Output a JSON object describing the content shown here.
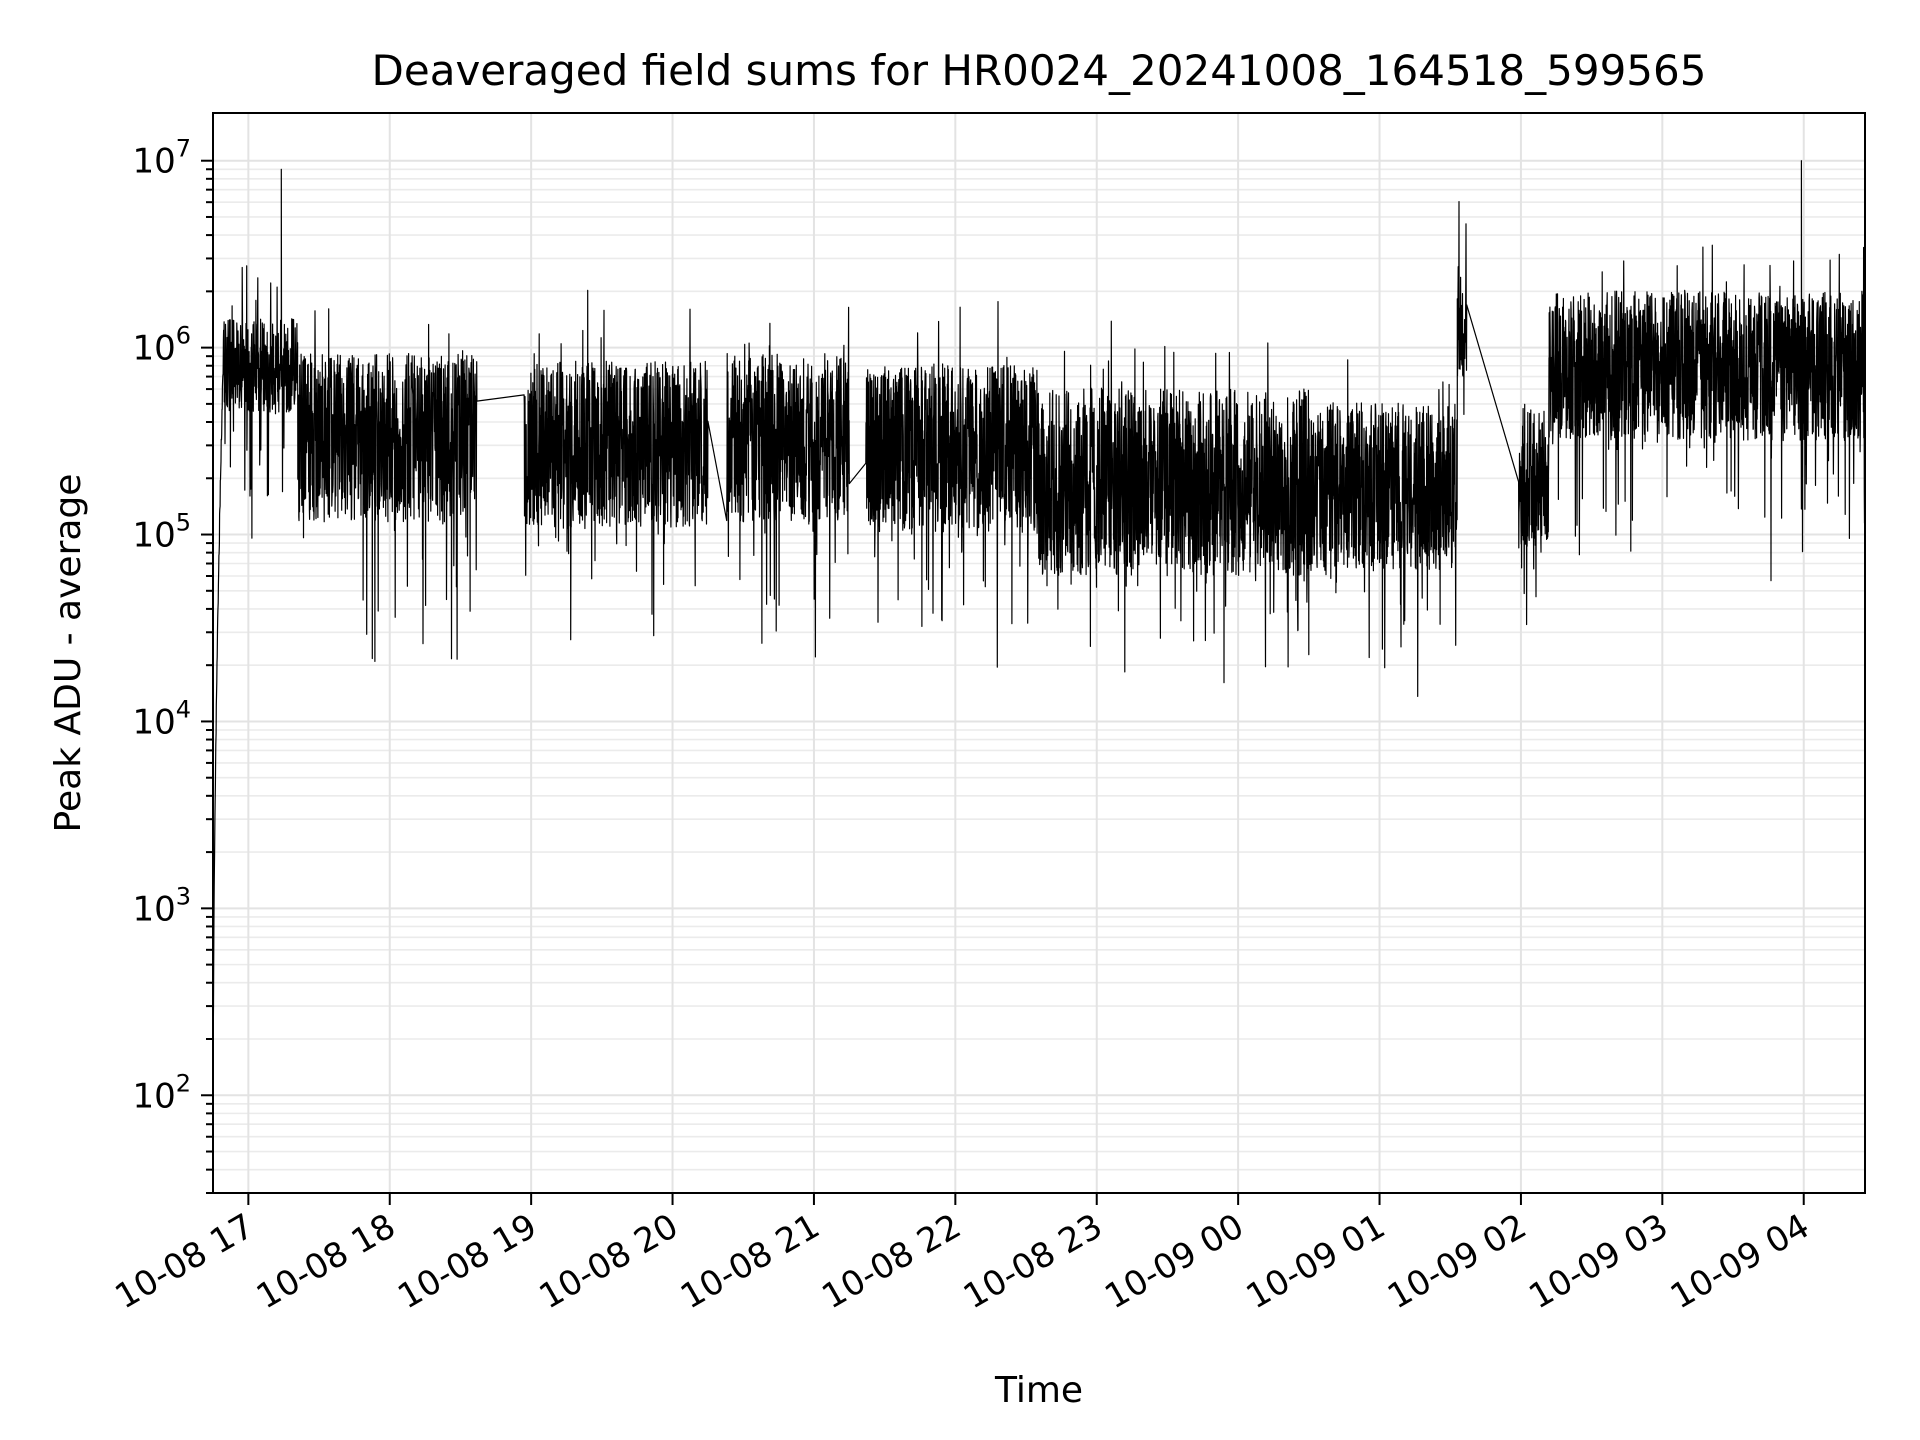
{
  "chart_data": {
    "type": "line",
    "title": "Deaveraged field sums for HR0024_20241008_164518_599565",
    "xlabel": "Time",
    "ylabel": "Peak ADU - average",
    "yscale": "log",
    "ylim": [
      30,
      18000000
    ],
    "xlim": [
      "2024-10-08 16:45",
      "2024-10-09 04:26"
    ],
    "grid": true,
    "x_ticks": [
      {
        "value": "2024-10-08 17:00",
        "label": "10-08 17"
      },
      {
        "value": "2024-10-08 18:00",
        "label": "10-08 18"
      },
      {
        "value": "2024-10-08 19:00",
        "label": "10-08 19"
      },
      {
        "value": "2024-10-08 20:00",
        "label": "10-08 20"
      },
      {
        "value": "2024-10-08 21:00",
        "label": "10-08 21"
      },
      {
        "value": "2024-10-08 22:00",
        "label": "10-08 22"
      },
      {
        "value": "2024-10-08 23:00",
        "label": "10-08 23"
      },
      {
        "value": "2024-10-09 00:00",
        "label": "10-09 00"
      },
      {
        "value": "2024-10-09 01:00",
        "label": "10-09 01"
      },
      {
        "value": "2024-10-09 02:00",
        "label": "10-09 02"
      },
      {
        "value": "2024-10-09 03:00",
        "label": "10-09 03"
      },
      {
        "value": "2024-10-09 04:00",
        "label": "10-09 04"
      }
    ],
    "y_ticks": [
      {
        "value": 100,
        "base": "10",
        "exp": "2"
      },
      {
        "value": 1000,
        "base": "10",
        "exp": "3"
      },
      {
        "value": 10000,
        "base": "10",
        "exp": "4"
      },
      {
        "value": 100000,
        "base": "10",
        "exp": "5"
      },
      {
        "value": 1000000,
        "base": "10",
        "exp": "6"
      },
      {
        "value": 10000000,
        "base": "10",
        "exp": "7"
      }
    ],
    "series": [
      {
        "color": "#000000",
        "segments": [
          {
            "start": "2024-10-08 16:45",
            "end": "2024-10-08 17:21",
            "level": 800000,
            "spread": 0.25,
            "ramp_from": 40
          },
          {
            "start": "2024-10-08 17:21",
            "end": "2024-10-08 18:37",
            "level": 330000,
            "spread": 0.45
          },
          {
            "start": "2024-10-08 18:57",
            "end": "2024-10-08 20:15",
            "level": 300000,
            "spread": 0.45
          },
          {
            "start": "2024-10-08 20:23",
            "end": "2024-10-08 21:15",
            "level": 330000,
            "spread": 0.45
          },
          {
            "start": "2024-10-08 21:22",
            "end": "2024-10-08 22:35",
            "level": 290000,
            "spread": 0.45
          },
          {
            "start": "2024-10-08 22:35",
            "end": "2024-10-09 00:30",
            "level": 190000,
            "spread": 0.5
          },
          {
            "start": "2024-10-09 00:30",
            "end": "2024-10-09 01:33",
            "level": 180000,
            "spread": 0.45
          },
          {
            "start": "2024-10-09 01:33",
            "end": "2024-10-09 01:37",
            "level": 1400000,
            "spread": 0.3
          },
          {
            "start": "2024-10-09 01:59",
            "end": "2024-10-09 02:12",
            "level": 200000,
            "spread": 0.4
          },
          {
            "start": "2024-10-09 02:12",
            "end": "2024-10-09 04:26",
            "level": 800000,
            "spread": 0.4
          }
        ],
        "peaks": [
          {
            "x": "2024-10-08 17:14",
            "y": 9000000
          },
          {
            "x": "2024-10-09 03:59",
            "y": 10000000
          }
        ]
      }
    ]
  }
}
